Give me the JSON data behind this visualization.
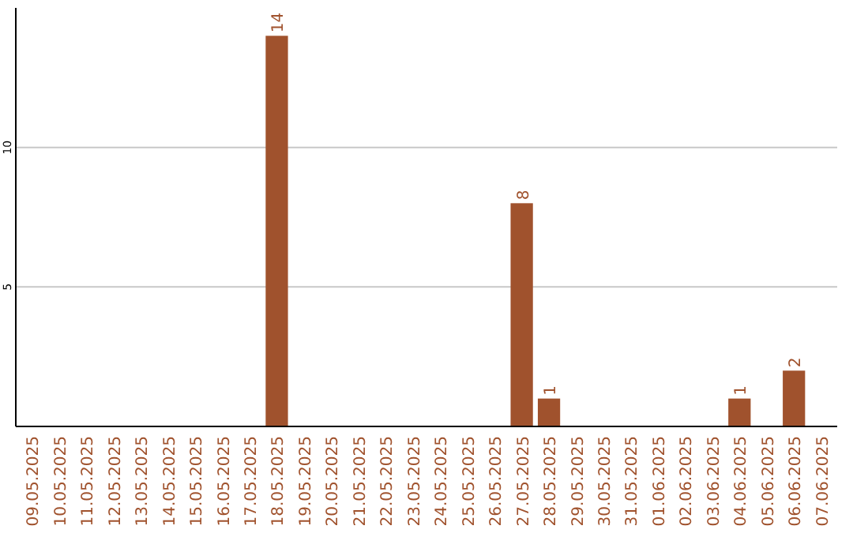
{
  "chart_data": {
    "type": "bar",
    "categories": [
      "09.05.2025",
      "10.05.2025",
      "11.05.2025",
      "12.05.2025",
      "13.05.2025",
      "14.05.2025",
      "15.05.2025",
      "16.05.2025",
      "17.05.2025",
      "18.05.2025",
      "19.05.2025",
      "20.05.2025",
      "21.05.2025",
      "22.05.2025",
      "23.05.2025",
      "24.05.2025",
      "25.05.2025",
      "26.05.2025",
      "27.05.2025",
      "28.05.2025",
      "29.05.2025",
      "30.05.2025",
      "31.05.2025",
      "01.06.2025",
      "02.06.2025",
      "03.06.2025",
      "04.06.2025",
      "05.06.2025",
      "06.06.2025",
      "07.06.2025"
    ],
    "values": [
      0,
      0,
      0,
      0,
      0,
      0,
      0,
      0,
      0,
      14,
      0,
      0,
      0,
      0,
      0,
      0,
      0,
      0,
      8,
      1,
      0,
      0,
      0,
      0,
      0,
      0,
      1,
      0,
      2,
      0
    ],
    "value_labels": [
      null,
      null,
      null,
      null,
      null,
      null,
      null,
      null,
      null,
      "14",
      null,
      null,
      null,
      null,
      null,
      null,
      null,
      null,
      "8",
      "1",
      null,
      null,
      null,
      null,
      null,
      null,
      "1",
      null,
      "2",
      null
    ],
    "color": "#a0522d",
    "ylim": [
      0,
      15
    ],
    "yticks": [
      5,
      10
    ],
    "grid": "y"
  }
}
